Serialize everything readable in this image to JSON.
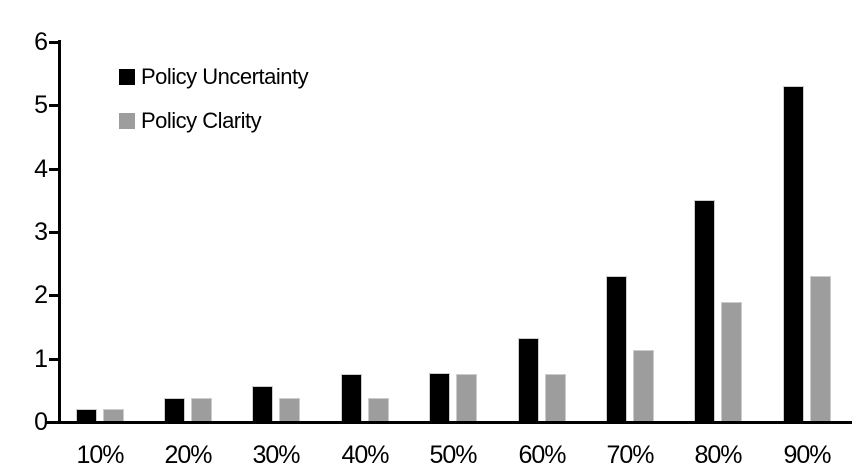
{
  "chart_data": {
    "type": "bar",
    "title": "",
    "xlabel": "",
    "ylabel": "",
    "categories": [
      "10%",
      "20%",
      "30%",
      "40%",
      "50%",
      "60%",
      "70%",
      "80%",
      "90%"
    ],
    "series": [
      {
        "name": "Policy Uncertainty",
        "color": "#000000",
        "values": [
          0.2,
          0.38,
          0.57,
          0.76,
          0.78,
          1.33,
          2.3,
          3.5,
          5.3
        ]
      },
      {
        "name": "Policy Clarity",
        "color": "#9d9d9d",
        "values": [
          0.2,
          0.38,
          0.38,
          0.38,
          0.76,
          0.76,
          1.13,
          1.9,
          2.3
        ]
      }
    ],
    "ylim": [
      0,
      6
    ],
    "y_ticks": [
      "0",
      "1",
      "2",
      "3",
      "4",
      "5",
      "6"
    ],
    "grid": false,
    "legend_position": "top-left-inside",
    "bar_outline_color": "#cccccc",
    "axis_color": "#000000",
    "background_color": "#ffffff"
  }
}
